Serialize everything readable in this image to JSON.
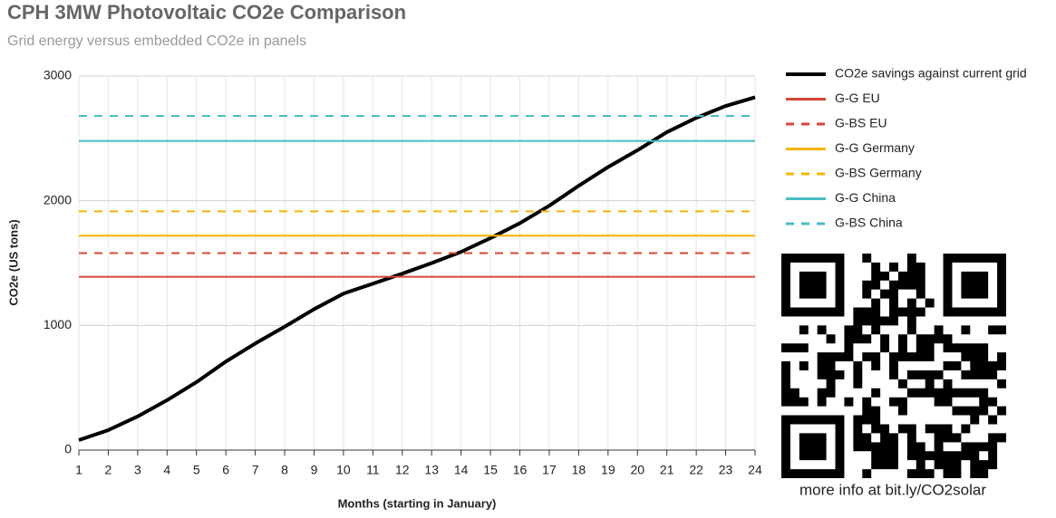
{
  "chart_data": {
    "type": "line",
    "title": "CPH 3MW Photovoltaic CO2e Comparison",
    "subtitle": "Grid energy versus embedded CO2e in panels",
    "x_label": "Months (starting in January)",
    "y_label": "CO2e (US tons)",
    "x": [
      1,
      2,
      3,
      4,
      5,
      6,
      7,
      8,
      9,
      10,
      11,
      12,
      13,
      14,
      15,
      16,
      17,
      18,
      19,
      20,
      21,
      22,
      23,
      24
    ],
    "xlim": [
      1,
      24
    ],
    "xticks": [
      1,
      2,
      3,
      4,
      5,
      6,
      7,
      8,
      9,
      10,
      11,
      12,
      13,
      14,
      15,
      16,
      17,
      18,
      19,
      20,
      21,
      22,
      23,
      24
    ],
    "ylim": [
      0,
      3000
    ],
    "yticks": [
      0,
      1000,
      2000,
      3000
    ],
    "grid": true,
    "legend": "right",
    "series": [
      {
        "name": "CO2e savings against current grid",
        "color": "#000000",
        "dashed": false,
        "values": [
          80,
          160,
          270,
          400,
          545,
          710,
          855,
          990,
          1130,
          1255,
          1335,
          1415,
          1500,
          1590,
          1700,
          1820,
          1960,
          2120,
          2270,
          2405,
          2550,
          2665,
          2760,
          2830
        ]
      },
      {
        "name": "G-G EU",
        "color": "#db4437",
        "dashed": false,
        "value": 1390
      },
      {
        "name": "G-BS EU",
        "color": "#db4437",
        "dashed": true,
        "value": 1580
      },
      {
        "name": "G-G Germany",
        "color": "#f4b400",
        "dashed": false,
        "value": 1720
      },
      {
        "name": "G-BS Germany",
        "color": "#f4b400",
        "dashed": true,
        "value": 1915
      },
      {
        "name": "G-G China",
        "color": "#46bdc6",
        "dashed": false,
        "value": 2480
      },
      {
        "name": "G-BS China",
        "color": "#46bdc6",
        "dashed": true,
        "value": 2680
      }
    ],
    "annotation": "more info at bit.ly/CO2solar"
  }
}
